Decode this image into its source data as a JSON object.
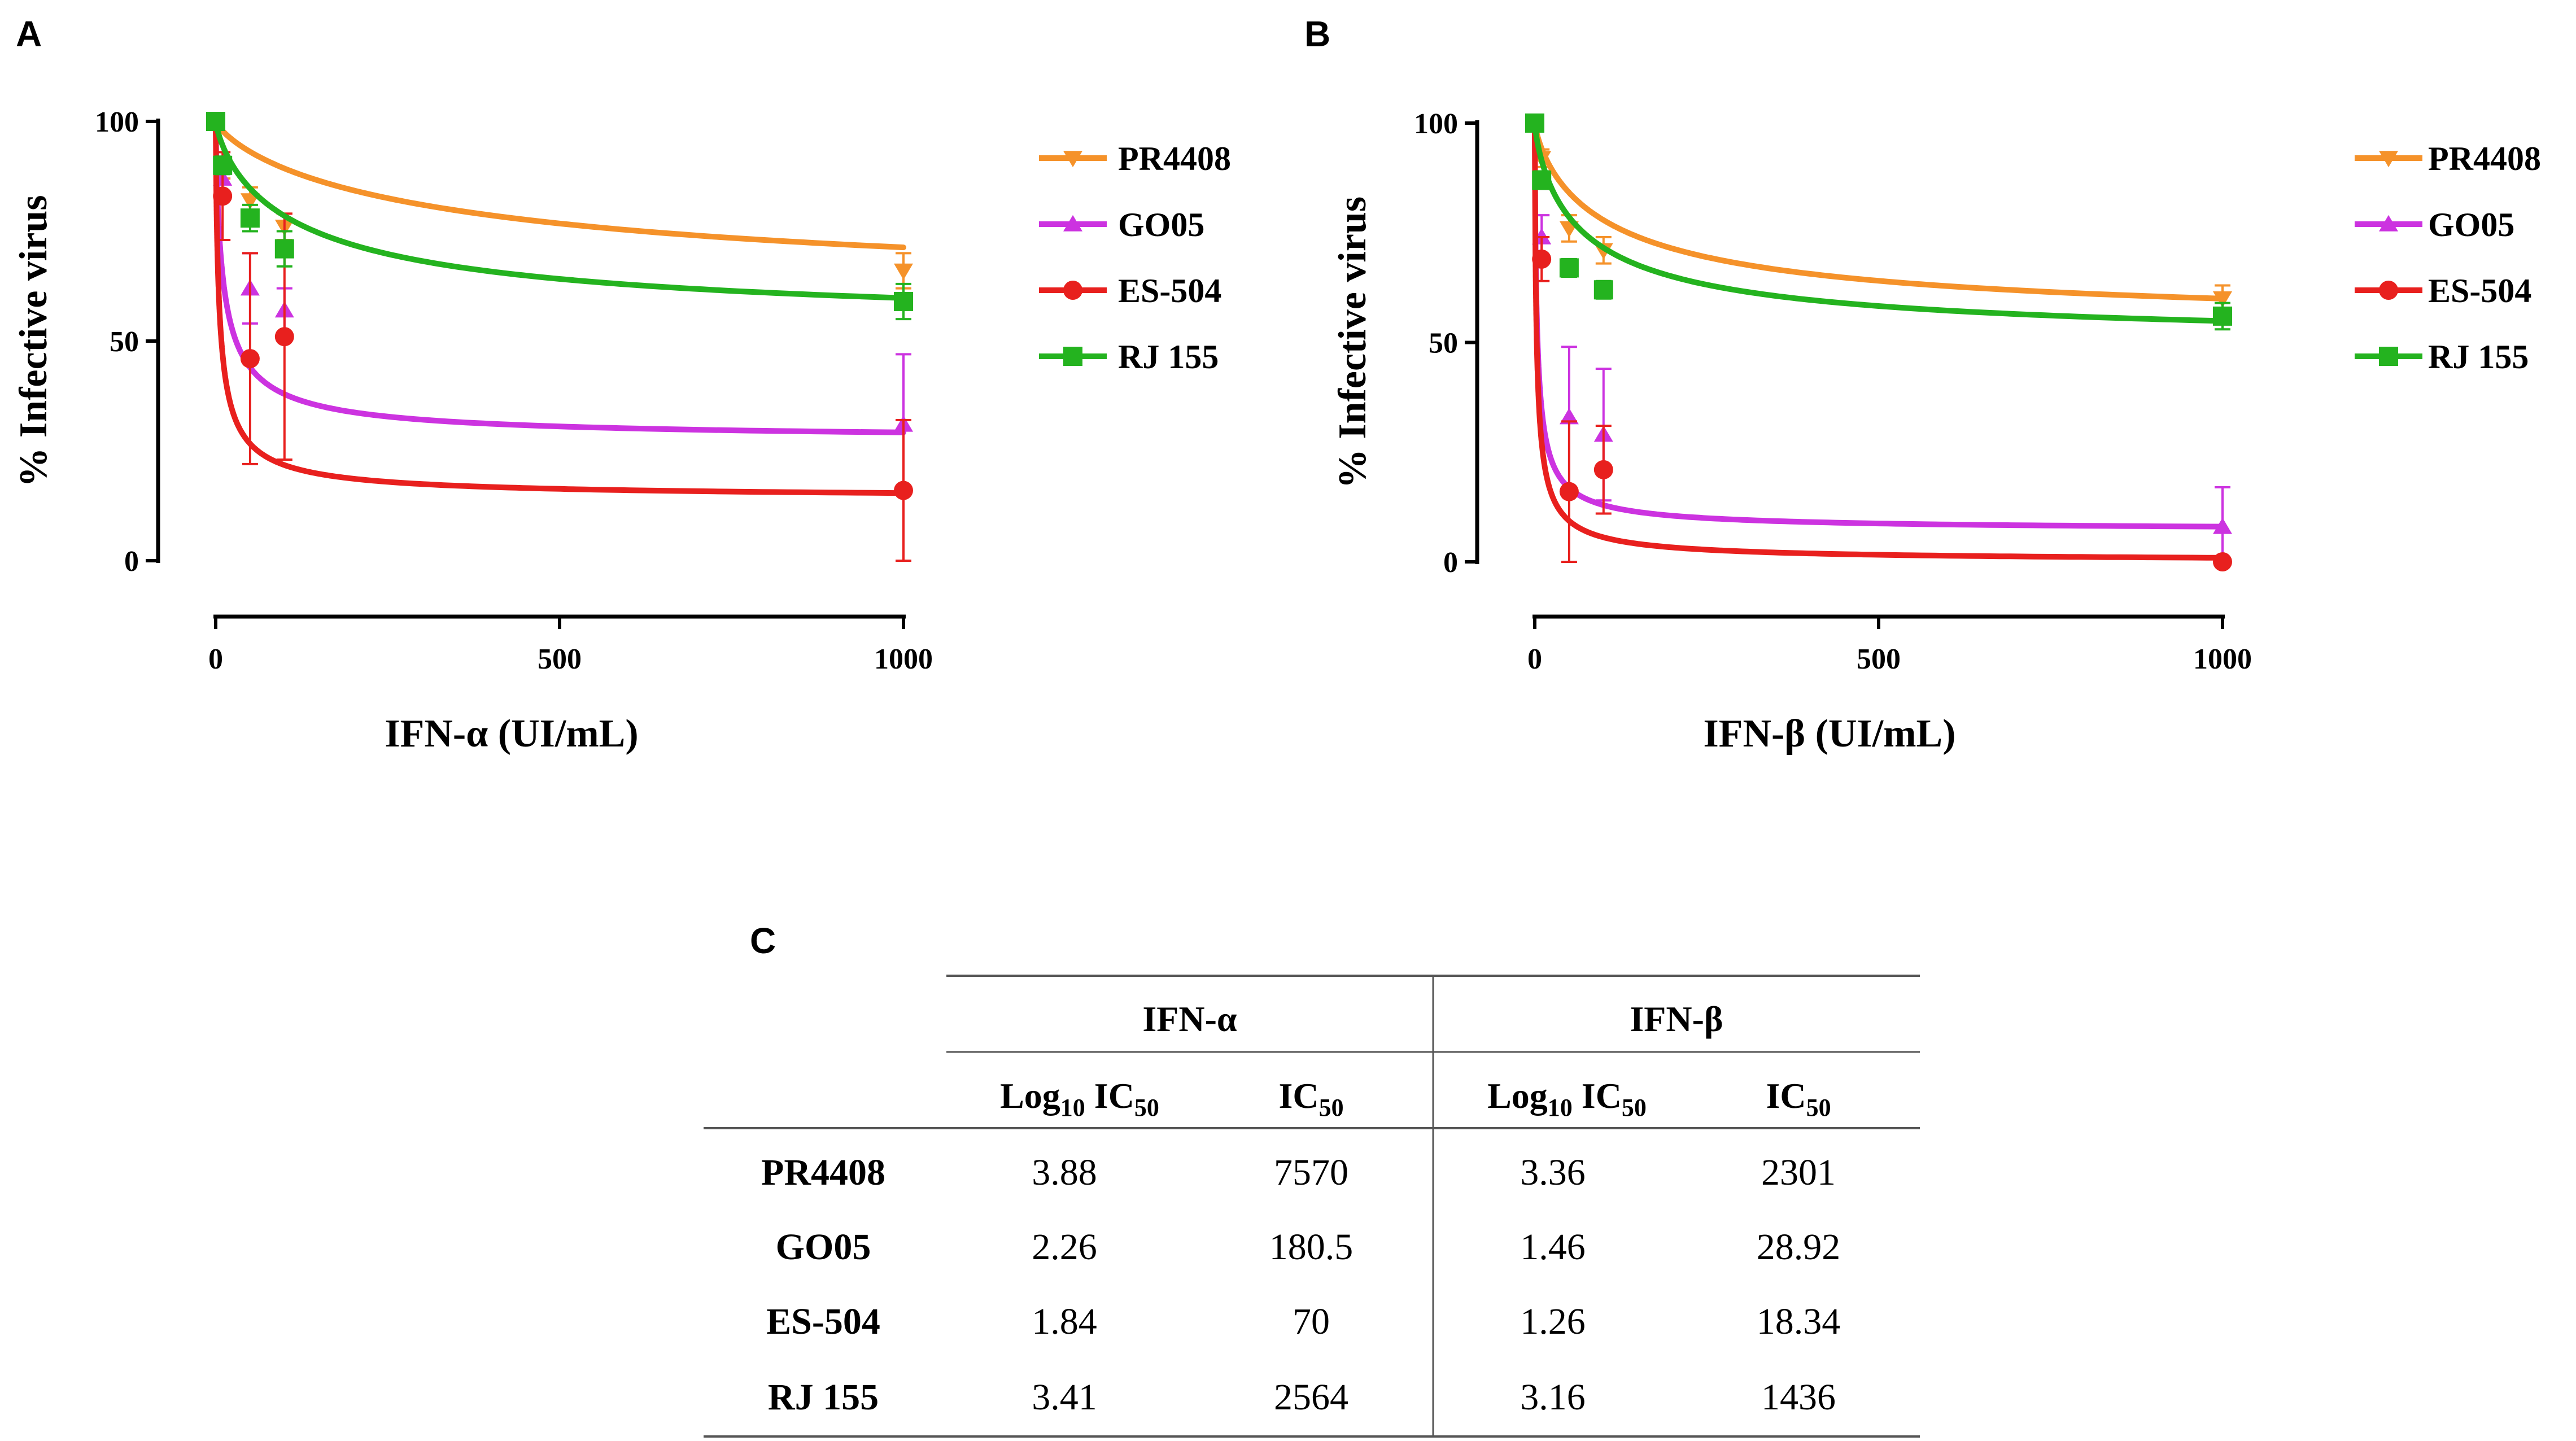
{
  "panels": {
    "a": "A",
    "b": "B",
    "c": "C"
  },
  "chart_data": [
    {
      "type": "line",
      "panel": "A",
      "xlabel": "IFN-α (UI/mL)",
      "ylabel": "% Infective virus",
      "xlim": [
        0,
        1000
      ],
      "ylim": [
        0,
        100
      ],
      "xticks": [
        "0",
        "500",
        "1000"
      ],
      "yticks": [
        "0",
        "50",
        "100"
      ],
      "x": [
        0,
        10,
        50,
        100,
        1000
      ],
      "series": [
        {
          "name": "PR4408",
          "color": "#F5922A",
          "marker": "triangle-down",
          "values": [
            100,
            89,
            82,
            76,
            66
          ],
          "err": [
            0,
            2,
            3,
            3,
            4
          ],
          "ic50": 7570
        },
        {
          "name": "GO05",
          "color": "#CC33E0",
          "marker": "triangle-up",
          "values": [
            100,
            87,
            62,
            57,
            31
          ],
          "err": [
            0,
            3,
            8,
            5,
            16
          ],
          "ic50": 180.5
        },
        {
          "name": "ES-504",
          "color": "#E8201E",
          "marker": "circle",
          "values": [
            100,
            83,
            46,
            51,
            16
          ],
          "err": [
            0,
            10,
            24,
            28,
            16
          ],
          "ic50": 70
        },
        {
          "name": "RJ 155",
          "color": "#24B31F",
          "marker": "square",
          "values": [
            100,
            90,
            78,
            71,
            59
          ],
          "err": [
            0,
            2,
            3,
            4,
            4
          ],
          "ic50": 2564
        }
      ]
    },
    {
      "type": "line",
      "panel": "B",
      "xlabel": "IFN-β (UI/mL)",
      "ylabel": "% Infective virus",
      "xlim": [
        0,
        1000
      ],
      "ylim": [
        0,
        100
      ],
      "xticks": [
        "0",
        "500",
        "1000"
      ],
      "yticks": [
        "0",
        "50",
        "100"
      ],
      "x": [
        0,
        10,
        50,
        100,
        1000
      ],
      "series": [
        {
          "name": "PR4408",
          "color": "#F5922A",
          "marker": "triangle-down",
          "values": [
            100,
            92,
            76,
            71,
            60
          ],
          "err": [
            0,
            2,
            3,
            3,
            3
          ],
          "ic50": 2301
        },
        {
          "name": "GO05",
          "color": "#CC33E0",
          "marker": "triangle-up",
          "values": [
            100,
            74,
            33,
            29,
            8
          ],
          "err": [
            0,
            5,
            16,
            15,
            9
          ],
          "ic50": 28.92
        },
        {
          "name": "ES-504",
          "color": "#E8201E",
          "marker": "circle",
          "values": [
            100,
            69,
            16,
            21,
            0
          ],
          "err": [
            0,
            5,
            16,
            10,
            0
          ],
          "ic50": 18.34
        },
        {
          "name": "RJ 155",
          "color": "#24B31F",
          "marker": "square",
          "values": [
            100,
            87,
            67,
            62,
            56
          ],
          "err": [
            0,
            2,
            2,
            2,
            3
          ],
          "ic50": 1436
        }
      ]
    }
  ],
  "table": {
    "groups": [
      "IFN-α",
      "IFN-β"
    ],
    "col_log_main": "Log",
    "col_log_sub": "10",
    "col_ic_main": "IC",
    "col_ic_sub": "50",
    "rows": [
      {
        "label": "PR4408",
        "values": [
          "3.88",
          "7570",
          "3.36",
          "2301"
        ]
      },
      {
        "label": "GO05",
        "values": [
          "2.26",
          "180.5",
          "1.46",
          "28.92"
        ]
      },
      {
        "label": "ES-504",
        "values": [
          "1.84",
          "70",
          "1.26",
          "18.34"
        ]
      },
      {
        "label": "RJ 155",
        "values": [
          "3.41",
          "2564",
          "3.16",
          "1436"
        ]
      }
    ]
  }
}
